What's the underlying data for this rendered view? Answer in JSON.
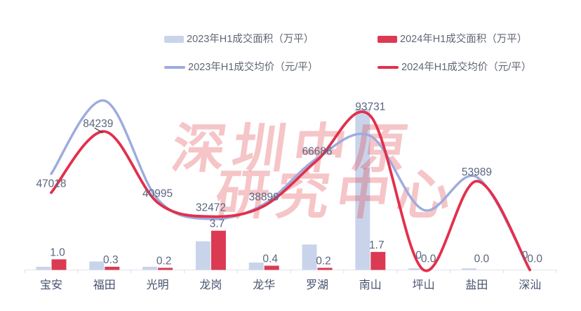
{
  "watermark": {
    "lines": [
      "深圳中原",
      "研究中心"
    ],
    "color": "rgba(224,76,84,0.32)"
  },
  "chart_data": {
    "type": "bar+line combo",
    "categories": [
      "宝安",
      "福田",
      "光明",
      "龙岗",
      "龙华",
      "罗湖",
      "南山",
      "坪山",
      "盐田",
      "深汕"
    ],
    "series": [
      {
        "name": "2023年H1成交面积（万平）",
        "type": "bar",
        "color": "#c9d4eb",
        "values": [
          0.3,
          0.8,
          0.3,
          2.7,
          0.7,
          2.4,
          15.2,
          0.15,
          0.15,
          0
        ],
        "labels_visible": false,
        "estimated": true
      },
      {
        "name": "2024年H1成交面积（万平）",
        "type": "bar",
        "color": "#dc3a52",
        "values": [
          1.0,
          0.3,
          0.2,
          3.7,
          0.4,
          0.2,
          1.7,
          0.0,
          0.0,
          0.0
        ],
        "labels": [
          "1.0",
          "0.3",
          "0.2",
          "3.7",
          "0.4",
          "0.2",
          "1.7",
          "0.0",
          "0.0",
          "0.0"
        ],
        "labels_visible": true
      },
      {
        "name": "2023年H1成交均价（元/平）",
        "type": "line",
        "color": "#9dabde",
        "values": [
          58500,
          103000,
          43000,
          31000,
          40000,
          68000,
          81500,
          36500,
          56500,
          0
        ],
        "labels_visible": false,
        "estimated": true
      },
      {
        "name": "2024年H1成交均价（元/平）",
        "type": "line",
        "color": "#e2304c",
        "values": [
          47018,
          84239,
          40995,
          32472,
          38899,
          66686,
          93731,
          0,
          53989,
          0
        ],
        "labels": [
          "47018",
          "84239",
          "40995",
          "32472",
          "38899",
          "66686",
          "93731",
          "0",
          "53989",
          "0"
        ],
        "labels_visible": true,
        "leader_index": 1
      }
    ],
    "bar_unit": "万平",
    "line_unit": "元/平",
    "bar_ylim": [
      0,
      16
    ],
    "line_ylim": [
      0,
      100000
    ],
    "legend_position": "top",
    "grid": false
  }
}
